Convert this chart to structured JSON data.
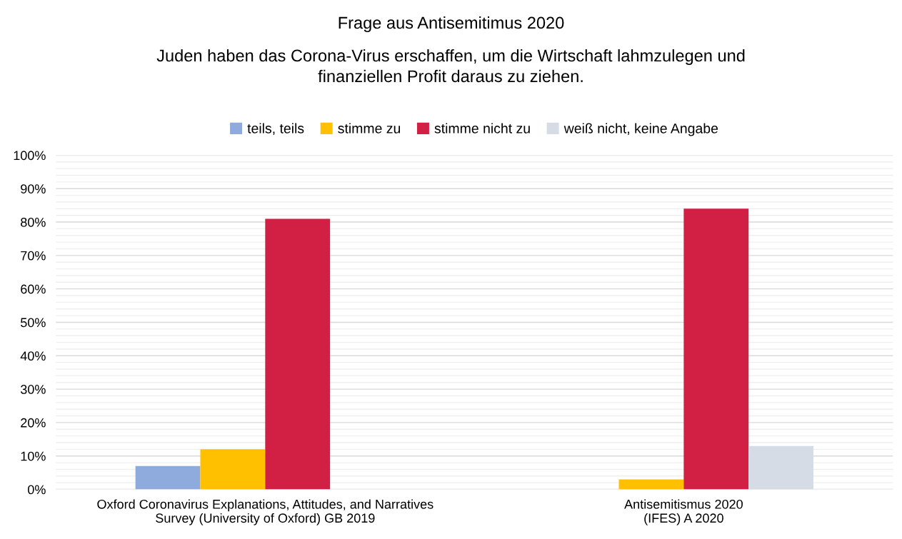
{
  "chart_data": {
    "type": "bar",
    "title": "Frage aus Antisemitimus 2020",
    "subtitle": "Juden haben das Corona-Virus erschaffen, um die Wirtschaft lahmzulegen und\nfinanziellen Profit daraus zu ziehen.",
    "categories": [
      "Oxford Coronavirus Explanations, Attitudes, and Narratives\nSurvey (University of Oxford) GB 2019",
      "Antisemitismus 2020\n(IFES) A 2020"
    ],
    "series": [
      {
        "name": "teils, teils",
        "color": "#8faadc",
        "values": [
          7,
          null
        ]
      },
      {
        "name": "stimme zu",
        "color": "#ffc000",
        "values": [
          12,
          3
        ]
      },
      {
        "name": "stimme nicht zu",
        "color": "#d12043",
        "values": [
          81,
          84
        ]
      },
      {
        "name": "weiß nicht, keine Angabe",
        "color": "#d6dce5",
        "values": [
          null,
          13
        ]
      }
    ],
    "ylim": [
      0,
      100
    ],
    "yticks": [
      {
        "value": 0,
        "label": "0%"
      },
      {
        "value": 2,
        "label": null
      },
      {
        "value": 4,
        "label": null
      },
      {
        "value": 6,
        "label": null
      },
      {
        "value": 8,
        "label": null
      },
      {
        "value": 10,
        "label": "10%"
      },
      {
        "value": 12,
        "label": null
      },
      {
        "value": 14,
        "label": null
      },
      {
        "value": 16,
        "label": null
      },
      {
        "value": 18,
        "label": null
      },
      {
        "value": 20,
        "label": "20%"
      },
      {
        "value": 22,
        "label": null
      },
      {
        "value": 24,
        "label": null
      },
      {
        "value": 26,
        "label": null
      },
      {
        "value": 28,
        "label": null
      },
      {
        "value": 30,
        "label": "30%"
      },
      {
        "value": 32,
        "label": null
      },
      {
        "value": 34,
        "label": null
      },
      {
        "value": 36,
        "label": null
      },
      {
        "value": 38,
        "label": null
      },
      {
        "value": 40,
        "label": "40%"
      },
      {
        "value": 42,
        "label": null
      },
      {
        "value": 44,
        "label": null
      },
      {
        "value": 46,
        "label": null
      },
      {
        "value": 48,
        "label": null
      },
      {
        "value": 50,
        "label": "50%"
      },
      {
        "value": 52,
        "label": null
      },
      {
        "value": 54,
        "label": null
      },
      {
        "value": 56,
        "label": null
      },
      {
        "value": 58,
        "label": null
      },
      {
        "value": 60,
        "label": "60%"
      },
      {
        "value": 62,
        "label": null
      },
      {
        "value": 64,
        "label": null
      },
      {
        "value": 66,
        "label": null
      },
      {
        "value": 68,
        "label": null
      },
      {
        "value": 70,
        "label": "70%"
      },
      {
        "value": 72,
        "label": null
      },
      {
        "value": 74,
        "label": null
      },
      {
        "value": 76,
        "label": null
      },
      {
        "value": 78,
        "label": null
      },
      {
        "value": 80,
        "label": "80%"
      },
      {
        "value": 82,
        "label": null
      },
      {
        "value": 84,
        "label": null
      },
      {
        "value": 86,
        "label": null
      },
      {
        "value": 88,
        "label": null
      },
      {
        "value": 90,
        "label": "90%"
      },
      {
        "value": 92,
        "label": null
      },
      {
        "value": 94,
        "label": null
      },
      {
        "value": 96,
        "label": null
      },
      {
        "value": 98,
        "label": null
      },
      {
        "value": 100,
        "label": "100%"
      }
    ],
    "grid": "y",
    "legend": "top"
  }
}
